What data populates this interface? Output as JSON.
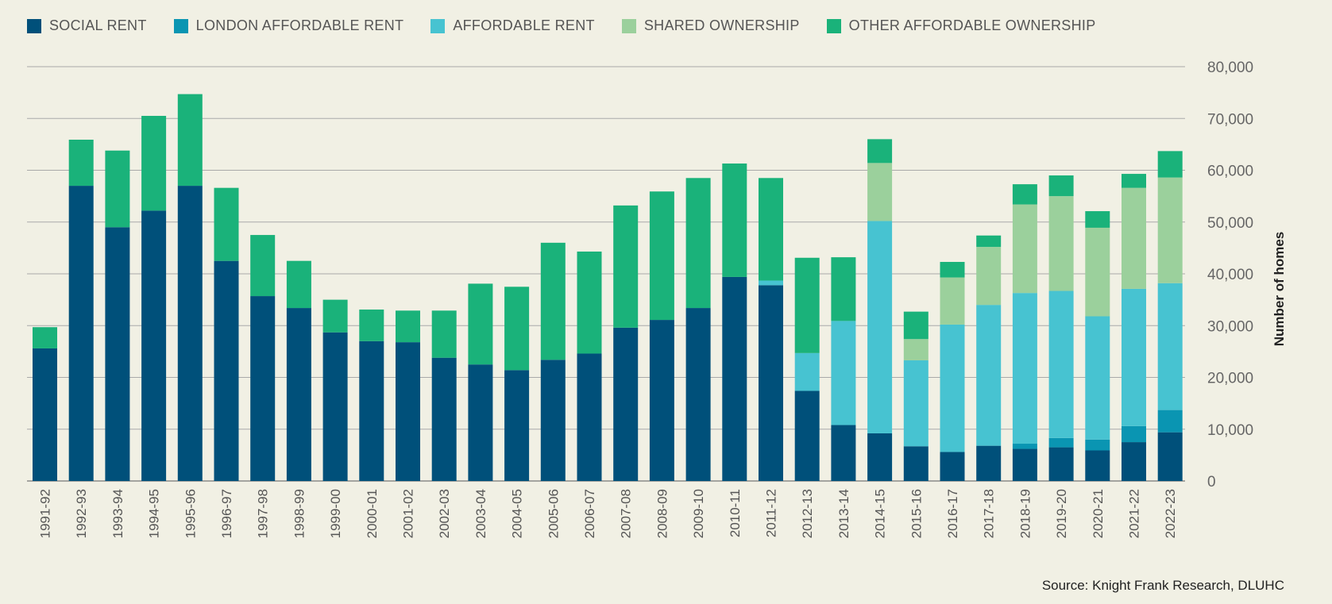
{
  "chart_data": {
    "type": "bar",
    "stacked": true,
    "title": "",
    "xlabel": "",
    "ylabel": "Number of homes",
    "ylim": [
      0,
      80000
    ],
    "yticks": [
      0,
      10000,
      20000,
      30000,
      40000,
      50000,
      60000,
      70000,
      80000
    ],
    "ytick_labels": [
      "0",
      "10,000",
      "20,000",
      "30,000",
      "40,000",
      "50,000",
      "60,000",
      "70,000",
      "80,000"
    ],
    "grid": true,
    "legend_position": "top-left",
    "categories": [
      "1991-92",
      "1992-93",
      "1993-94",
      "1994-95",
      "1995-96",
      "1996-97",
      "1997-98",
      "1998-99",
      "1999-00",
      "2000-01",
      "2001-02",
      "2002-03",
      "2003-04",
      "2004-05",
      "2005-06",
      "2006-07",
      "2007-08",
      "2008-09",
      "2009-10",
      "2010-11",
      "2011-12",
      "2012-13",
      "2013-14",
      "2014-15",
      "2015-16",
      "2016-17",
      "2017-18",
      "2018-19",
      "2019-20",
      "2020-21",
      "2021-22",
      "2022-23"
    ],
    "series": [
      {
        "name": "SOCIAL RENT",
        "color": "#00507a",
        "values": [
          25600,
          57000,
          49000,
          52200,
          57000,
          42500,
          35700,
          33400,
          28700,
          27000,
          26800,
          23800,
          22500,
          21400,
          23400,
          24600,
          29600,
          31100,
          33400,
          39400,
          37800,
          17400,
          10800,
          9200,
          6700,
          5600,
          6800,
          6200,
          6500,
          5900,
          7500,
          9400
        ]
      },
      {
        "name": "LONDON AFFORDABLE RENT",
        "color": "#0a95b2",
        "values": [
          0,
          0,
          0,
          0,
          0,
          0,
          0,
          0,
          0,
          0,
          0,
          0,
          0,
          0,
          0,
          0,
          0,
          0,
          0,
          0,
          0,
          0,
          0,
          0,
          0,
          0,
          0,
          1000,
          1800,
          2100,
          3100,
          4300
        ]
      },
      {
        "name": "AFFORDABLE RENT",
        "color": "#47c3d1",
        "values": [
          0,
          0,
          0,
          0,
          0,
          0,
          0,
          0,
          0,
          0,
          0,
          0,
          0,
          0,
          0,
          0,
          0,
          0,
          0,
          0,
          900,
          7300,
          20100,
          41000,
          16600,
          24600,
          27200,
          29100,
          28400,
          23800,
          26500,
          24500
        ]
      },
      {
        "name": "SHARED OWNERSHIP",
        "color": "#9bd09c",
        "values": [
          0,
          0,
          0,
          0,
          0,
          0,
          0,
          0,
          0,
          0,
          0,
          0,
          0,
          0,
          0,
          0,
          0,
          0,
          0,
          0,
          0,
          0,
          0,
          11200,
          4100,
          9100,
          11200,
          17100,
          18300,
          17100,
          19500,
          20400
        ]
      },
      {
        "name": "OTHER AFFORDABLE OWNERSHIP",
        "color": "#1ab27a",
        "values": [
          4100,
          8900,
          14800,
          18300,
          17700,
          14100,
          11800,
          9100,
          6300,
          6100,
          6100,
          9100,
          15600,
          16100,
          22600,
          19700,
          23600,
          24800,
          25100,
          21900,
          19800,
          18400,
          12300,
          4600,
          5300,
          3000,
          2200,
          3900,
          4000,
          3200,
          2700,
          5100
        ]
      }
    ]
  },
  "legend": {
    "items": [
      {
        "label": "SOCIAL RENT",
        "color": "#00507a"
      },
      {
        "label": "LONDON AFFORDABLE RENT",
        "color": "#0a95b2"
      },
      {
        "label": "AFFORDABLE RENT",
        "color": "#47c3d1"
      },
      {
        "label": "SHARED OWNERSHIP",
        "color": "#9bd09c"
      },
      {
        "label": "OTHER AFFORDABLE OWNERSHIP",
        "color": "#1ab27a"
      }
    ]
  },
  "source": "Source: Knight Frank Research, DLUHC"
}
